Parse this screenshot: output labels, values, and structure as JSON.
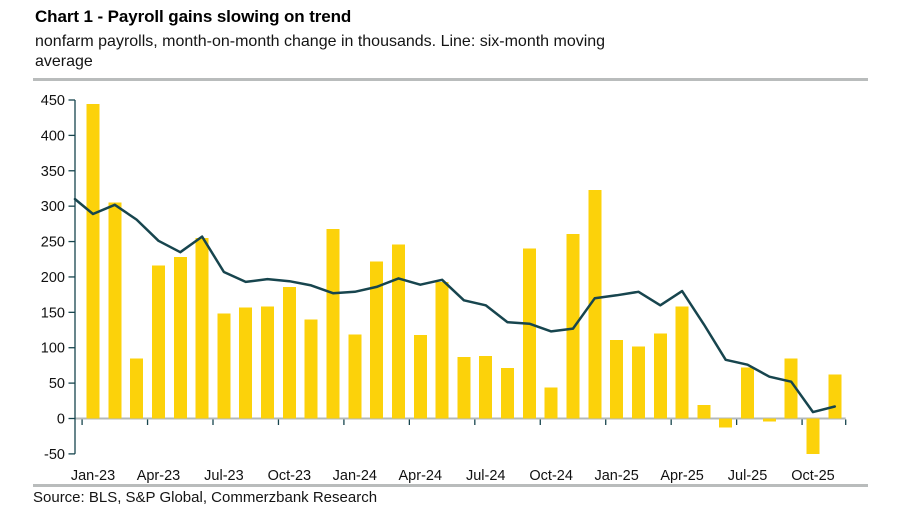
{
  "page": {
    "title": "Chart 1 - Payroll gains slowing on trend",
    "subtitle_line1": "nonfarm payrolls, month-on-month change in thousands. Line: six-month moving",
    "subtitle_line2": "average",
    "source": "Source: BLS, S&P Global, Commerzbank Research"
  },
  "chart_data": {
    "type": "bar",
    "title": "Chart 1 - Payroll gains slowing on trend",
    "subtitle": "nonfarm payrolls, month-on-month change in thousands. Line: six-month moving average",
    "categories": [
      "Jan-23",
      "Feb-23",
      "Mar-23",
      "Apr-23",
      "May-23",
      "Jun-23",
      "Jul-23",
      "Aug-23",
      "Sep-23",
      "Oct-23",
      "Nov-23",
      "Dec-23",
      "Jan-24",
      "Feb-24",
      "Mar-24",
      "Apr-24",
      "May-24",
      "Jun-24",
      "Jul-24",
      "Aug-24",
      "Sep-24",
      "Oct-24",
      "Nov-24",
      "Dec-24",
      "Jan-25",
      "Feb-25",
      "Mar-25",
      "Apr-25",
      "May-25",
      "Jun-25",
      "Jul-25",
      "Aug-25",
      "Sep-25",
      "Oct-25",
      "Nov-25"
    ],
    "series": [
      {
        "name": "nonfarm payrolls, month-on-month change (thousands)",
        "type": "bar",
        "color": "#FCD20A",
        "values": [
          444,
          305,
          85,
          216,
          228,
          255,
          148,
          157,
          158,
          186,
          140,
          268,
          119,
          222,
          246,
          118,
          193,
          87,
          88,
          71,
          240,
          44,
          261,
          323,
          111,
          102,
          120,
          158,
          19,
          -13,
          72,
          -4,
          85,
          -50,
          62
        ]
      },
      {
        "name": "six-month moving average",
        "type": "line",
        "color": "#17454E",
        "start_at_axis_value": 310,
        "values": [
          289,
          302,
          281,
          251,
          235,
          257,
          207,
          193,
          197,
          194,
          188,
          177,
          179,
          186,
          198,
          189,
          196,
          167,
          160,
          136,
          134,
          123,
          127,
          170,
          174,
          179,
          160,
          180,
          133,
          83,
          76,
          59,
          52,
          9,
          17
        ]
      }
    ],
    "ylim": [
      -50,
      450
    ],
    "y_ticks": [
      450,
      400,
      350,
      300,
      250,
      200,
      150,
      100,
      50,
      0,
      -50
    ],
    "x_tick_labels": [
      "Jan-23",
      "Apr-23",
      "Jul-23",
      "Oct-23",
      "Jan-24",
      "Apr-24",
      "Jul-24",
      "Oct-24",
      "Jan-25",
      "Apr-25",
      "Jul-25",
      "Oct-25"
    ],
    "grid": "none",
    "legend": "none",
    "axis_color": "#17454E",
    "zero_line_color": "#b3b8ba"
  }
}
